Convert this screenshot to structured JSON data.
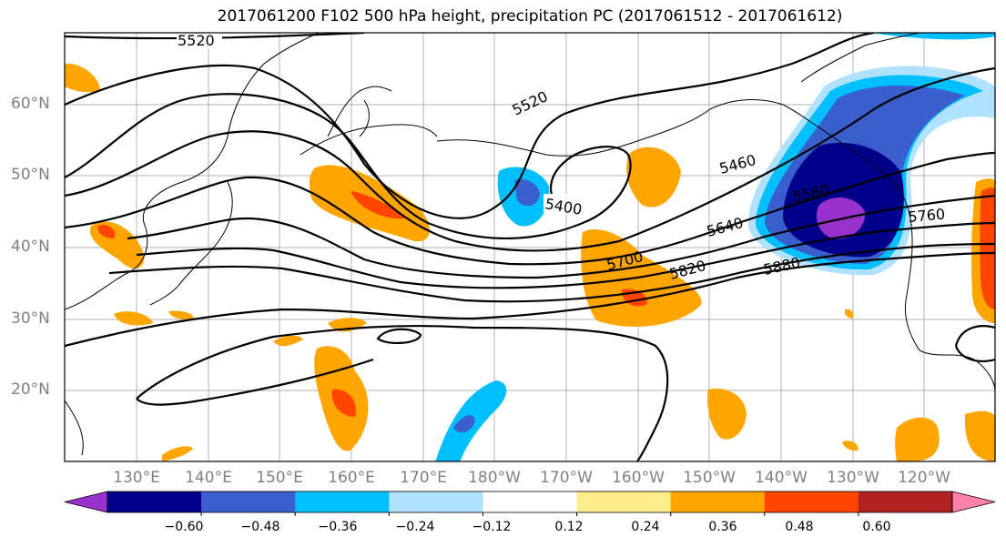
{
  "title": "2017061200 F102 500 hPa height, precipitation PC (2017061512 - 2017061612)",
  "lat_labels": [
    "60°N",
    "50°N",
    "40°N",
    "30°N",
    "20°N"
  ],
  "lon_labels": [
    "130°E",
    "140°E",
    "150°E",
    "160°E",
    "170°E",
    "180°W",
    "170°W",
    "160°W",
    "150°W",
    "140°W",
    "130°W",
    "120°W"
  ],
  "contour_labels": [
    "5520",
    "5520",
    "5400",
    "5460",
    "5580",
    "5640",
    "5700",
    "5760",
    "5820",
    "5880"
  ],
  "colorbar": {
    "colors": [
      "#9932cc",
      "#00008b",
      "#3a5fcd",
      "#00bfff",
      "#b0e2ff",
      "#ffffff",
      "#ffec8b",
      "#ffa500",
      "#ff4500",
      "#b22222",
      "#ff82ab"
    ],
    "tick_labels": [
      "−0.60",
      "−0.48",
      "−0.36",
      "−0.24",
      "−0.12",
      "0.12",
      "0.24",
      "0.36",
      "0.48",
      "0.60"
    ]
  }
}
